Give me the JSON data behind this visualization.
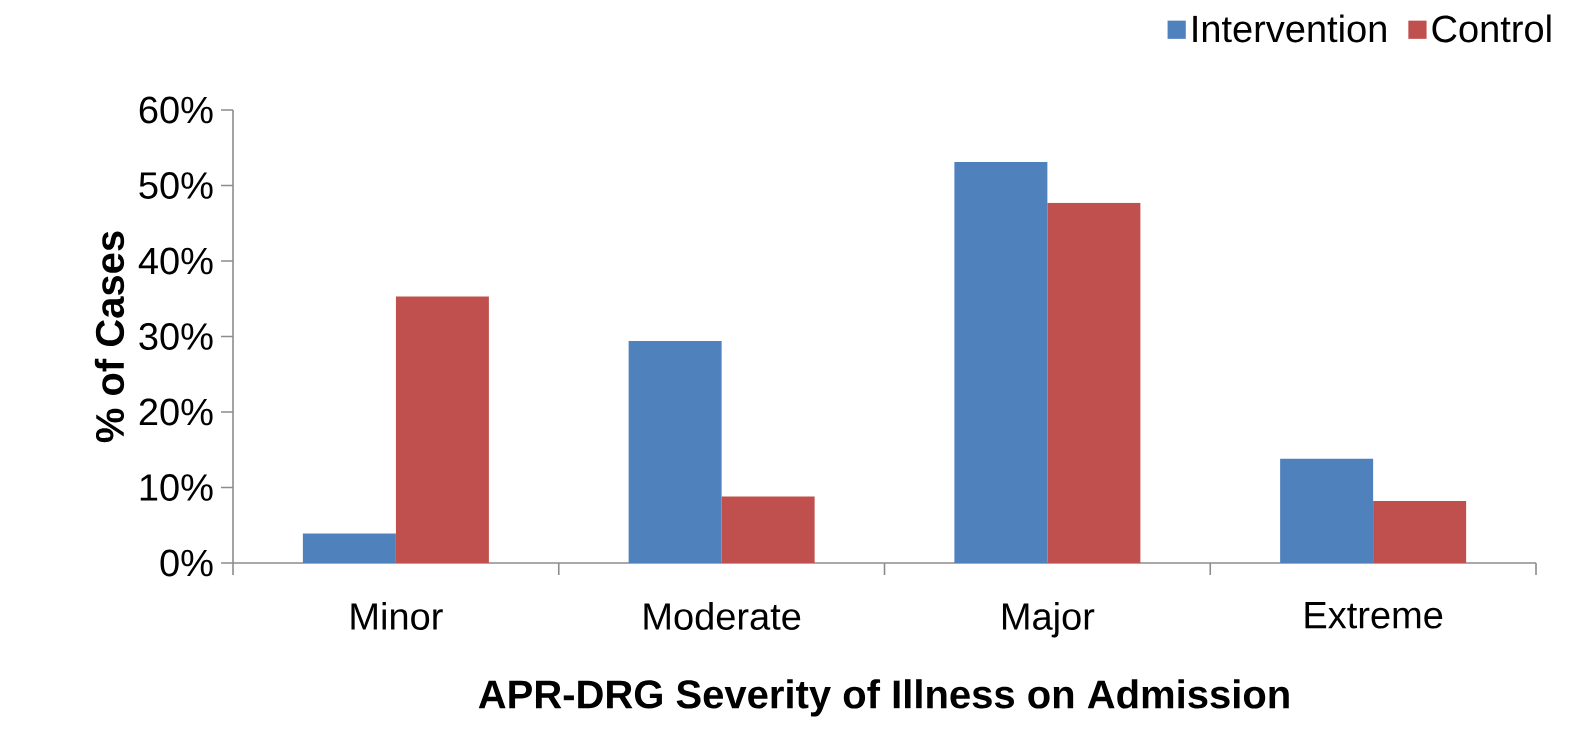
{
  "chart_data": {
    "type": "bar",
    "xlabel": "APR-DRG Severity of Illness on Admission",
    "ylabel": "% of Cases",
    "categories": [
      "Minor",
      "Moderate",
      "Major",
      "Extreme"
    ],
    "series": [
      {
        "name": "Intervention",
        "color": "#4f81bd",
        "values": [
          3.9,
          29.4,
          53.1,
          13.8
        ]
      },
      {
        "name": "Control",
        "color": "#c0504d",
        "values": [
          35.3,
          8.8,
          47.7,
          8.2
        ]
      }
    ],
    "ylim": [
      0,
      60
    ],
    "yticks": [
      {
        "value": 0,
        "label": "0%"
      },
      {
        "value": 10,
        "label": "10%"
      },
      {
        "value": 20,
        "label": "20%"
      },
      {
        "value": 30,
        "label": "30%"
      },
      {
        "value": 40,
        "label": "40%"
      },
      {
        "value": 50,
        "label": "50%"
      },
      {
        "value": 60,
        "label": "60%"
      }
    ],
    "grid": false,
    "legend": "top right"
  }
}
